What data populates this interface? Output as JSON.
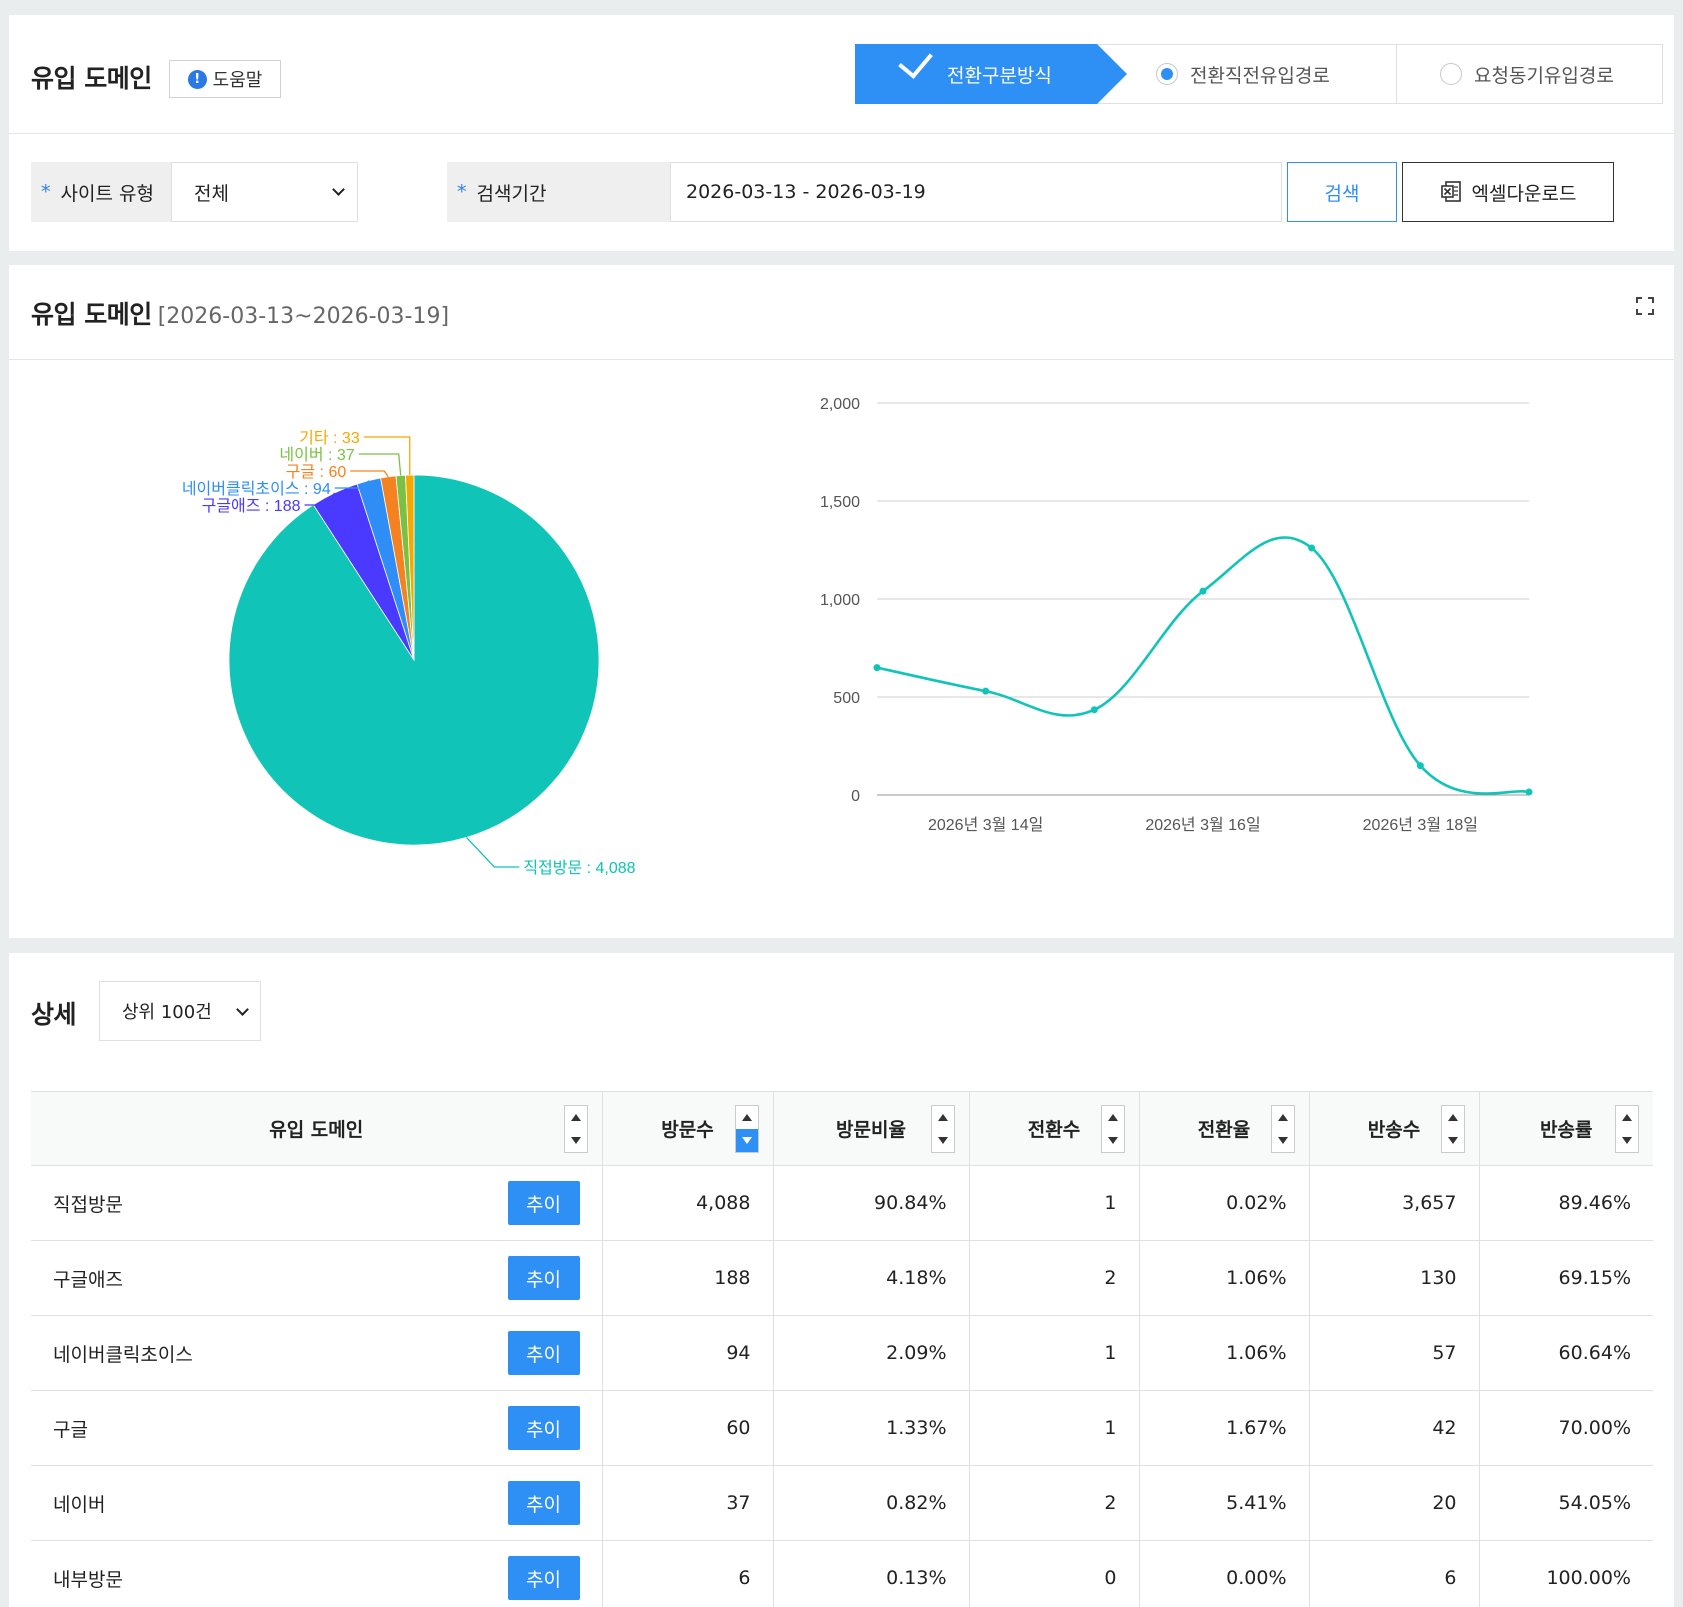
{
  "header": {
    "title": "유입 도메인",
    "help_label": "도움말",
    "help_icon": "exclamation-circle-icon",
    "tabs": [
      {
        "label": "전환구분방식",
        "active": true
      },
      {
        "label": "전환직전유입경로",
        "selected": true
      },
      {
        "label": "요청동기유입경로",
        "selected": false
      }
    ]
  },
  "filters": {
    "required_mark": "*",
    "site_type_label": "사이트 유형",
    "site_type_value": "전체",
    "period_label": "검색기간",
    "period_value": "2026-03-13 - 2026-03-19",
    "search_label": "검색",
    "excel_label": "엑셀다운로드"
  },
  "chart_section": {
    "title": "유입 도메인",
    "date_range": "[2026-03-13~2026-03-19]"
  },
  "chart_data": [
    {
      "type": "pie",
      "slices": [
        {
          "label": "직접방문 : 4,088",
          "name": "직접방문",
          "value": 4088,
          "color": "#10c4b8"
        },
        {
          "label": "구글애즈 : 188",
          "name": "구글애즈",
          "value": 188,
          "color": "#4a3aff"
        },
        {
          "label": "네이버클릭초이스 : 94",
          "name": "네이버클릭초이스",
          "value": 94,
          "color": "#2f8ef5"
        },
        {
          "label": "구글 : 60",
          "name": "구글",
          "value": 60,
          "color": "#f58220"
        },
        {
          "label": "네이버 : 37",
          "name": "네이버",
          "value": 37,
          "color": "#7ac143"
        },
        {
          "label": "기타 : 33",
          "name": "기타",
          "value": 33,
          "color": "#f5a800"
        }
      ]
    },
    {
      "type": "line",
      "x": [
        "2026-03-13",
        "2026-03-14",
        "2026-03-15",
        "2026-03-16",
        "2026-03-17",
        "2026-03-18",
        "2026-03-19"
      ],
      "x_tick_labels": [
        "2026년 3월 14일",
        "2026년 3월 16일",
        "2026년 3월 18일"
      ],
      "y_tick_labels": [
        "0",
        "500",
        "1,000",
        "1,500",
        "2,000"
      ],
      "ylim": [
        0,
        2000
      ],
      "grid": true,
      "series": [
        {
          "values": [
            650,
            530,
            435,
            1040,
            1260,
            150,
            15
          ],
          "color": "#10c4b8"
        }
      ]
    }
  ],
  "detail": {
    "title": "상세",
    "top_select": "상위 100건",
    "columns": [
      "유입 도메인",
      "방문수",
      "방문비율",
      "전환수",
      "전환율",
      "반송수",
      "반송률"
    ],
    "trend_label": "추이",
    "rows": [
      {
        "domain": "직접방문",
        "visits": "4,088",
        "visit_ratio": "90.84%",
        "conversions": "1",
        "conv_rate": "0.02%",
        "bounces": "3,657",
        "bounce_rate": "89.46%"
      },
      {
        "domain": "구글애즈",
        "visits": "188",
        "visit_ratio": "4.18%",
        "conversions": "2",
        "conv_rate": "1.06%",
        "bounces": "130",
        "bounce_rate": "69.15%"
      },
      {
        "domain": "네이버클릭초이스",
        "visits": "94",
        "visit_ratio": "2.09%",
        "conversions": "1",
        "conv_rate": "1.06%",
        "bounces": "57",
        "bounce_rate": "60.64%"
      },
      {
        "domain": "구글",
        "visits": "60",
        "visit_ratio": "1.33%",
        "conversions": "1",
        "conv_rate": "1.67%",
        "bounces": "42",
        "bounce_rate": "70.00%"
      },
      {
        "domain": "네이버",
        "visits": "37",
        "visit_ratio": "0.82%",
        "conversions": "2",
        "conv_rate": "5.41%",
        "bounces": "20",
        "bounce_rate": "54.05%"
      },
      {
        "domain": "내부방문",
        "visits": "6",
        "visit_ratio": "0.13%",
        "conversions": "0",
        "conv_rate": "0.00%",
        "bounces": "6",
        "bounce_rate": "100.00%"
      }
    ]
  }
}
